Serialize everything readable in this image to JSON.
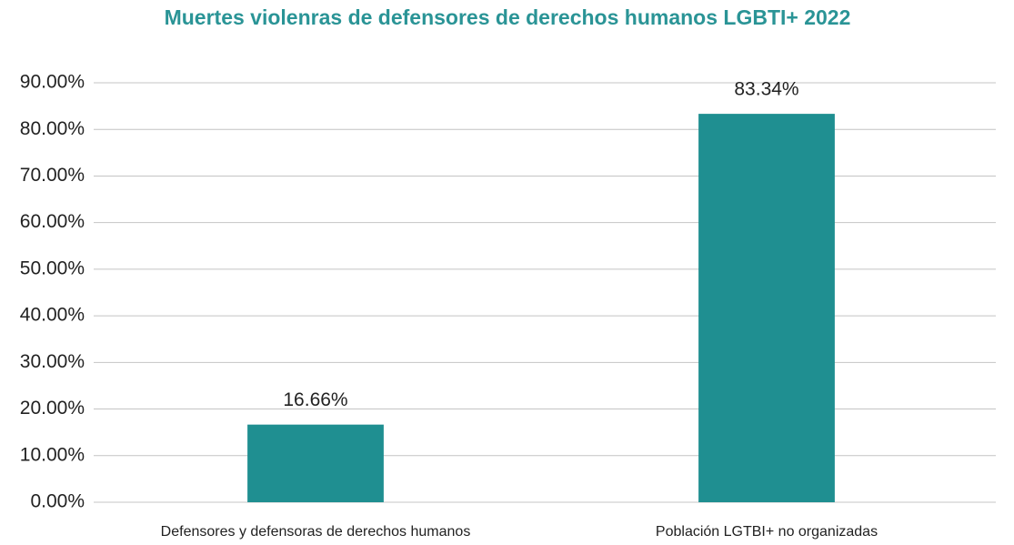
{
  "chart_data": {
    "type": "bar",
    "title": "Muertes violenras de defensores de derechos humanos LGBTI+ 2022",
    "categories": [
      "Defensores y defensoras de derechos humanos",
      "Población LGTBI+ no organizadas"
    ],
    "values": [
      16.66,
      83.34
    ],
    "value_labels": [
      "16.66%",
      "83.34%"
    ],
    "color": "#1f8f91",
    "ylim": [
      0,
      90
    ],
    "yticks": [
      {
        "value": 0,
        "label": "0.00%"
      },
      {
        "value": 10,
        "label": "10.00%"
      },
      {
        "value": 20,
        "label": "20.00%"
      },
      {
        "value": 30,
        "label": "30.00%"
      },
      {
        "value": 40,
        "label": "40.00%"
      },
      {
        "value": 50,
        "label": "50.00%"
      },
      {
        "value": 60,
        "label": "60.00%"
      },
      {
        "value": 70,
        "label": "70.00%"
      },
      {
        "value": 80,
        "label": "80.00%"
      },
      {
        "value": 90,
        "label": "90.00%"
      }
    ],
    "grid": true
  }
}
